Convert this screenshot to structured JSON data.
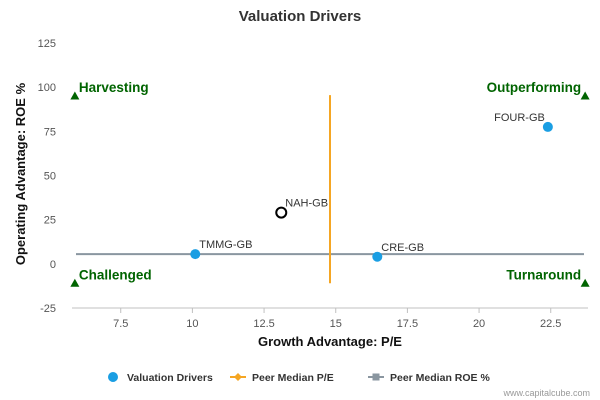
{
  "chart_data": {
    "type": "scatter",
    "title": "Valuation Drivers",
    "xlabel": "Growth Advantage: P/E",
    "ylabel": "Operating Advantage: ROE %",
    "xlim": [
      5.8,
      23.8
    ],
    "ylim": [
      -25,
      125
    ],
    "x_ticks": [
      "7.5",
      "10",
      "12.5",
      "15",
      "17.5",
      "20",
      "22.5"
    ],
    "x_tick_values": [
      7.5,
      10,
      12.5,
      15,
      17.5,
      20,
      22.5
    ],
    "y_ticks": [
      "125",
      "100",
      "75",
      "50",
      "25",
      "0",
      "-25"
    ],
    "y_tick_values": [
      125,
      100,
      75,
      50,
      25,
      0,
      -25
    ],
    "grid": false,
    "points": [
      {
        "label": "FOUR-GB",
        "x": 22.4,
        "y": 77.5,
        "style": "filled",
        "color": "#1a9ee3"
      },
      {
        "label": "NAH-GB",
        "x": 13.1,
        "y": 29,
        "style": "hollow",
        "color": "#000000"
      },
      {
        "label": "TMMG-GB",
        "x": 10.1,
        "y": 5.5,
        "style": "filled",
        "color": "#1a9ee3"
      },
      {
        "label": "CRE-GB",
        "x": 16.45,
        "y": 4,
        "style": "filled",
        "color": "#1a9ee3"
      }
    ],
    "peer_median_pe": {
      "x": 14.8,
      "y_from": -11,
      "y_to": 95.5,
      "color": "#f5a623"
    },
    "peer_median_roe": {
      "y": 5.5,
      "color": "#8a96a0"
    },
    "quadrants": [
      {
        "label": "Harvesting",
        "marker_x": 5.9,
        "marker_y": 95
      },
      {
        "label": "Outperforming",
        "marker_x": 23.7,
        "marker_y": 95
      },
      {
        "label": "Challenged",
        "marker_x": 5.9,
        "marker_y": -11
      },
      {
        "label": "Turnaround",
        "marker_x": 23.7,
        "marker_y": -11
      }
    ],
    "quadrant_color": "#006400",
    "legend": {
      "position": "bottom",
      "items": [
        {
          "label": "Valuation Drivers",
          "kind": "circle",
          "color": "#1a9ee3"
        },
        {
          "label": "Peer Median P/E",
          "kind": "line-diamond",
          "color": "#f5a623"
        },
        {
          "label": "Peer Median ROE %",
          "kind": "line-square",
          "color": "#8a96a0"
        }
      ]
    }
  },
  "credit": "www.capitalcube.com"
}
